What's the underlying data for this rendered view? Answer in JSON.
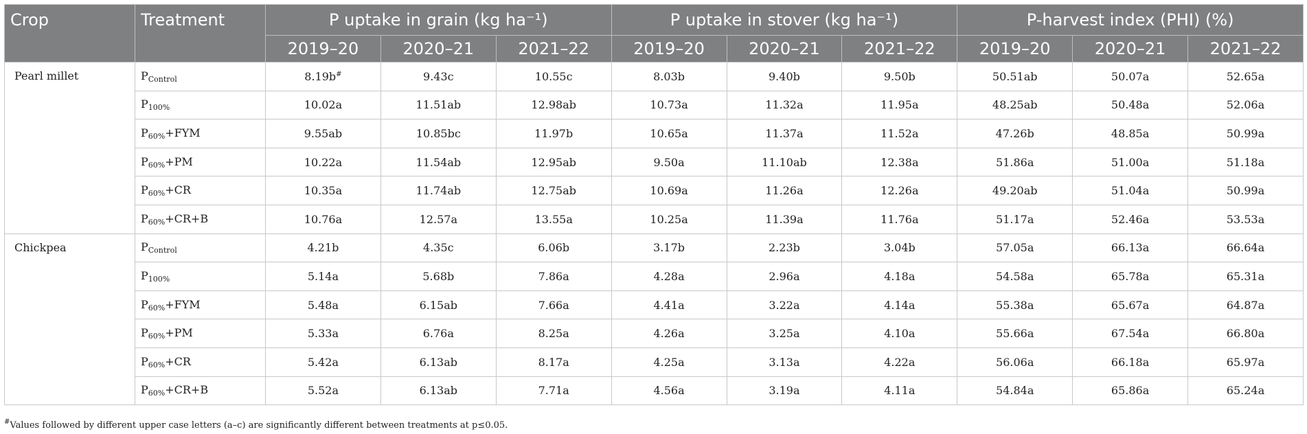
{
  "header": {
    "crop": "Crop",
    "treatment": "Treatment",
    "groups": [
      "P uptake in grain (kg ha⁻¹)",
      "P uptake in stover (kg ha⁻¹)",
      "P-harvest index (PHI) (%)"
    ],
    "years": [
      "2019–20",
      "2020–21",
      "2021–22"
    ]
  },
  "crops": [
    {
      "name": "Pearl millet",
      "rows": [
        {
          "p": "P",
          "sub": "Control",
          "suffix": "",
          "values": [
            "8.19b",
            "9.43c",
            "10.55c",
            "8.03b",
            "9.40b",
            "9.50b",
            "50.51ab",
            "50.07a",
            "52.65a"
          ],
          "footnote_mark": "#"
        },
        {
          "p": "P",
          "sub": "100%",
          "suffix": "",
          "values": [
            "10.02a",
            "11.51ab",
            "12.98ab",
            "10.73a",
            "11.32a",
            "11.95a",
            "48.25ab",
            "50.48a",
            "52.06a"
          ]
        },
        {
          "p": "P",
          "sub": "60%",
          "suffix": "+FYM",
          "values": [
            "9.55ab",
            "10.85bc",
            "11.97b",
            "10.65a",
            "11.37a",
            "11.52a",
            "47.26b",
            "48.85a",
            "50.99a"
          ]
        },
        {
          "p": "P",
          "sub": "60%",
          "suffix": "+PM",
          "values": [
            "10.22a",
            "11.54ab",
            "12.95ab",
            "9.50a",
            "11.10ab",
            "12.38a",
            "51.86a",
            "51.00a",
            "51.18a"
          ]
        },
        {
          "p": "P",
          "sub": "60%",
          "suffix": "+CR",
          "values": [
            "10.35a",
            "11.74ab",
            "12.75ab",
            "10.69a",
            "11.26a",
            "12.26a",
            "49.20ab",
            "51.04a",
            "50.99a"
          ]
        },
        {
          "p": "P",
          "sub": "60%",
          "suffix": "+CR+B",
          "values": [
            "10.76a",
            "12.57a",
            "13.55a",
            "10.25a",
            "11.39a",
            "11.76a",
            "51.17a",
            "52.46a",
            "53.53a"
          ]
        }
      ]
    },
    {
      "name": "Chickpea",
      "rows": [
        {
          "p": "P",
          "sub": "Control",
          "suffix": "",
          "values": [
            "4.21b",
            "4.35c",
            "6.06b",
            "3.17b",
            "2.23b",
            "3.04b",
            "57.05a",
            "66.13a",
            "66.64a"
          ]
        },
        {
          "p": "P",
          "sub": "100%",
          "suffix": "",
          "values": [
            "5.14a",
            "5.68b",
            "7.86a",
            "4.28a",
            "2.96a",
            "4.18a",
            "54.58a",
            "65.78a",
            "65.31a"
          ]
        },
        {
          "p": "P",
          "sub": "60%",
          "suffix": "+FYM",
          "values": [
            "5.48a",
            "6.15ab",
            "7.66a",
            "4.41a",
            "3.22a",
            "4.14a",
            "55.38a",
            "65.67a",
            "64.87a"
          ]
        },
        {
          "p": "P",
          "sub": "60%",
          "suffix": "+PM",
          "values": [
            "5.33a",
            "6.76a",
            "8.25a",
            "4.26a",
            "3.25a",
            "4.10a",
            "55.66a",
            "67.54a",
            "66.80a"
          ]
        },
        {
          "p": "P",
          "sub": "60%",
          "suffix": "+CR",
          "values": [
            "5.42a",
            "6.13ab",
            "8.17a",
            "4.25a",
            "3.13a",
            "4.22a",
            "56.06a",
            "66.18a",
            "65.97a"
          ]
        },
        {
          "p": "P",
          "sub": "60%",
          "suffix": "+CR+B",
          "values": [
            "5.52a",
            "6.13ab",
            "7.71a",
            "4.56a",
            "3.19a",
            "4.11a",
            "54.84a",
            "65.86a",
            "65.24a"
          ]
        }
      ]
    }
  ],
  "footnote": {
    "mark": "#",
    "text": "Values followed by different upper case letters (a–c) are significantly different between treatments at p≤0.05."
  }
}
